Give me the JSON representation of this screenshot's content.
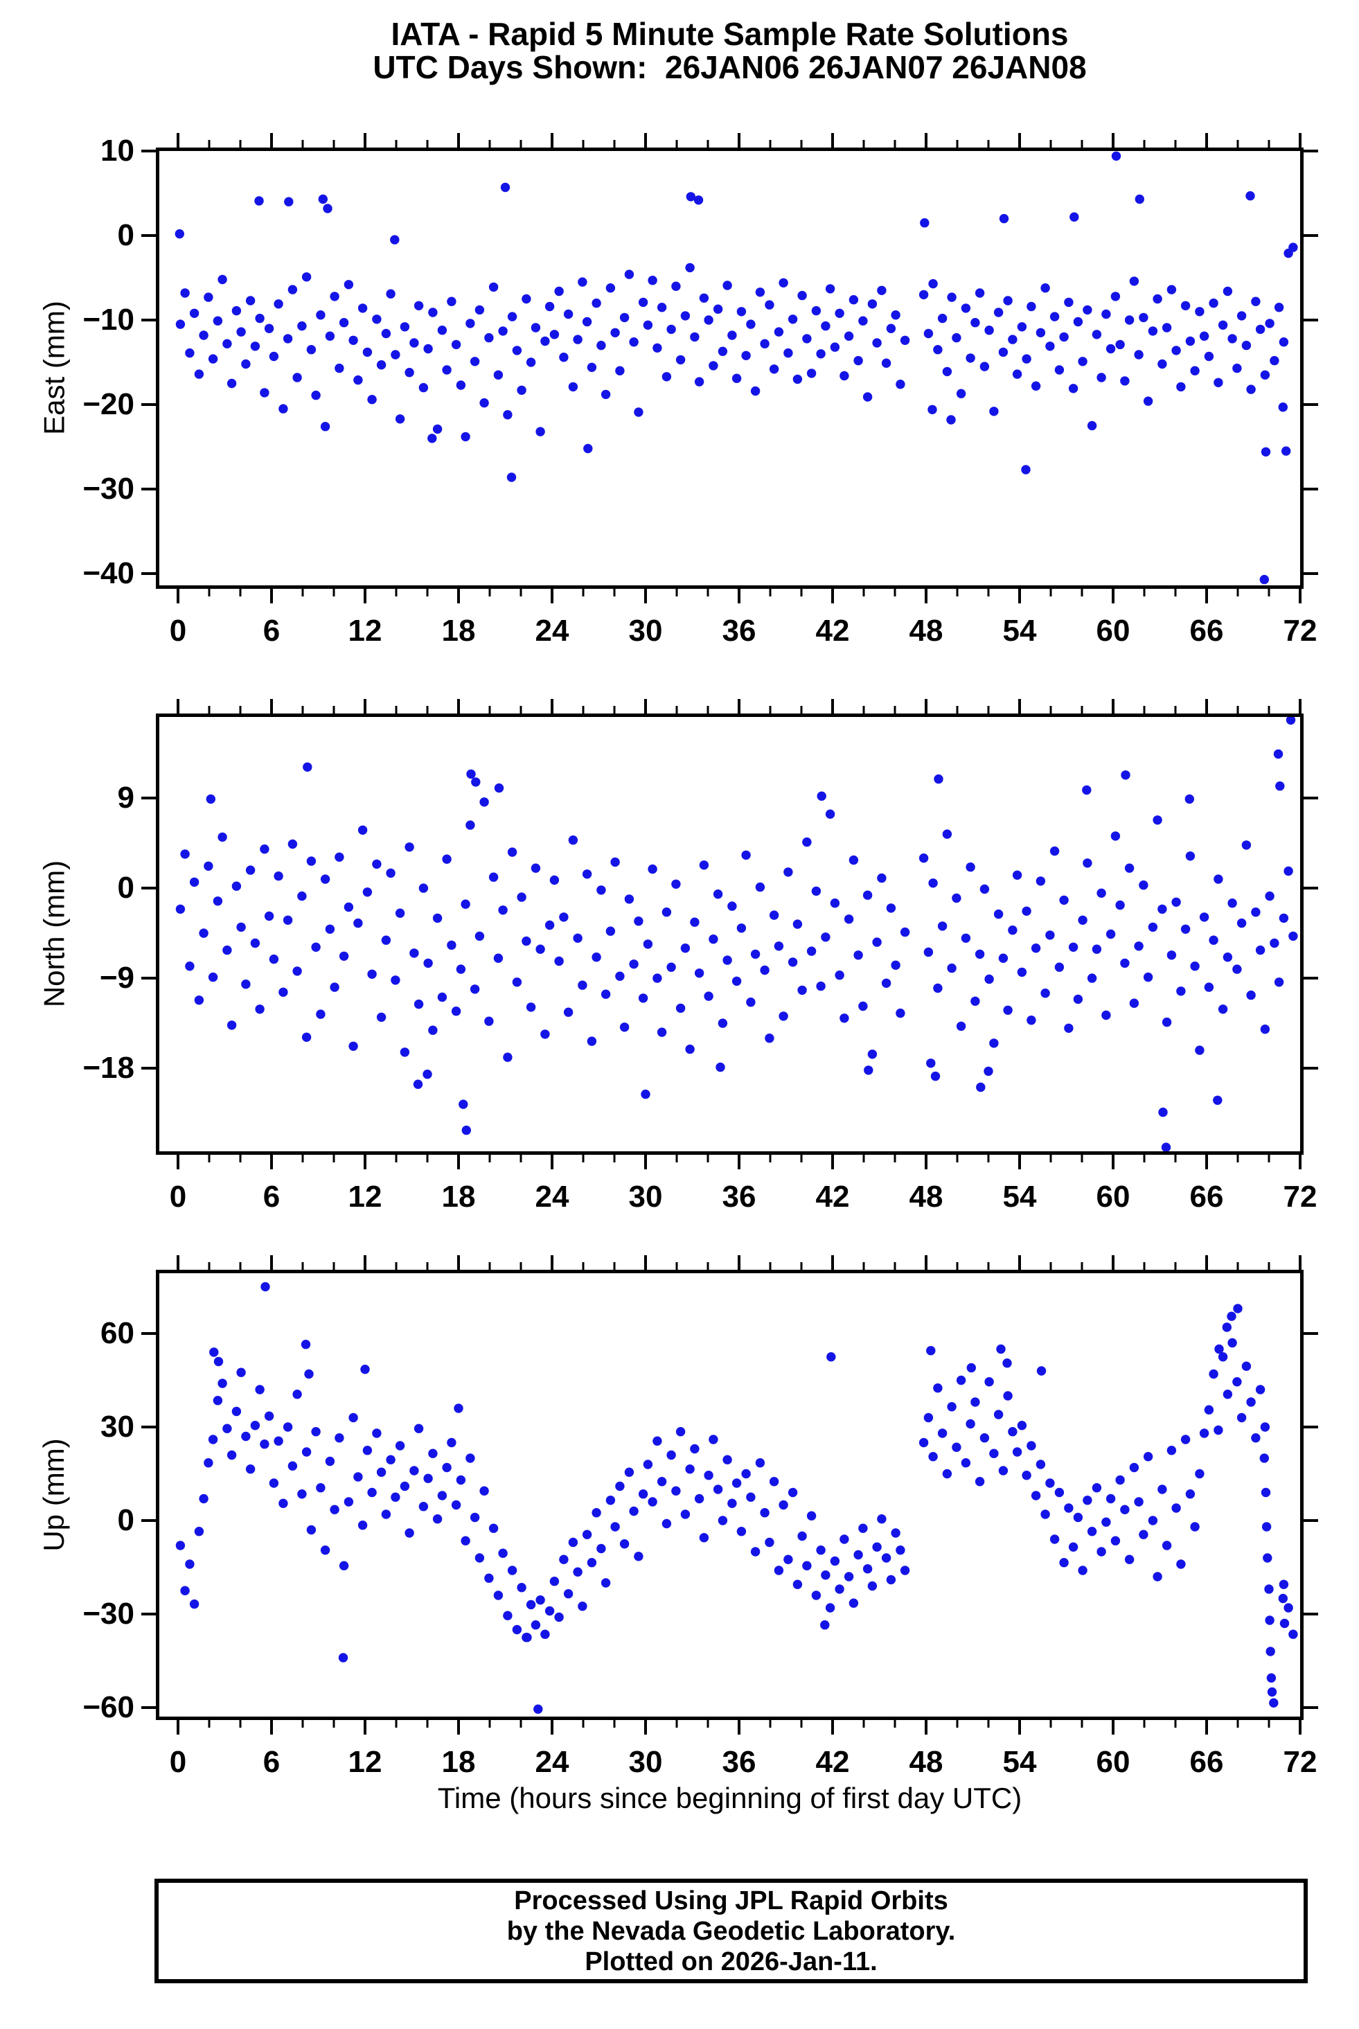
{
  "title_line1": "IATA - Rapid 5 Minute Sample Rate Solutions",
  "title_line2": "UTC Days Shown:  26JAN06 26JAN07 26JAN08",
  "xaxis_title": "Time (hours since beginning of first day UTC)",
  "footer": {
    "line1": "Processed Using JPL Rapid Orbits",
    "line2": "by the Nevada Geodetic Laboratory.",
    "line3": "Plotted on 2026-Jan-11."
  },
  "style": {
    "point_color": "#1414e6",
    "axis_color": "#000000",
    "background": "#ffffff"
  },
  "chart_data": {
    "type": "scatter",
    "title": "IATA - Rapid 5 Minute Sample Rate Solutions",
    "subtitle": "UTC Days Shown:  26JAN06 26JAN07 26JAN08",
    "xlabel": "Time (hours since beginning of first day UTC)",
    "x_axis": {
      "min": 0,
      "max": 72,
      "major_tick_step": 6,
      "minor_tick_step": 2,
      "major_tick_labels": [
        0,
        6,
        12,
        18,
        24,
        30,
        36,
        42,
        48,
        54,
        60,
        66,
        72
      ]
    },
    "legend": "none",
    "grid": false,
    "panels": [
      {
        "id": "east",
        "ylabel": "East (mm)",
        "yticks": [
          10,
          0,
          -10,
          -20,
          -30,
          -40
        ],
        "ylim_top": 10.41,
        "ylim_bottom": -41.8,
        "x_start": 0.15,
        "x_step": 0.3,
        "y_stream": [
          -10.5,
          -6.8,
          -13.9,
          -9.2,
          -16.4,
          -11.8,
          -7.3,
          -14.6,
          -10.1,
          -5.2,
          -12.8,
          -17.5,
          -8.9,
          -11.4,
          -15.2,
          -7.7,
          -13.1,
          -9.8,
          -18.6,
          -11.0,
          -14.3,
          -8.1,
          -20.5,
          -12.2,
          -6.4,
          -16.8,
          -10.7,
          -4.9,
          -13.5,
          -18.9,
          -9.4,
          -22.6,
          -11.9,
          -7.2,
          -15.7,
          -10.3,
          -5.8,
          -12.4,
          -17.1,
          -8.6,
          -13.8,
          -19.4,
          -9.9,
          -15.3,
          -11.6,
          -6.9,
          -14.1,
          -21.7,
          -10.8,
          -16.2,
          -12.7,
          -8.3,
          -18.0,
          -13.4,
          -9.1,
          -22.9,
          -11.2,
          -15.9,
          -7.8,
          -12.9,
          -17.7,
          -23.8,
          -10.4,
          -14.9,
          -8.8,
          -19.8,
          -12.1,
          -6.1,
          -16.5,
          -11.3,
          -21.2,
          -9.6,
          -13.6,
          -18.3,
          -7.5,
          -15.0,
          -10.9,
          -23.2,
          -12.5,
          -8.4,
          -11.7,
          -6.6,
          -14.4,
          -9.3,
          -17.9,
          -12.3,
          -5.5,
          -10.2,
          -15.6,
          -8.0,
          -13.0,
          -18.8,
          -6.2,
          -11.5,
          -16.0,
          -9.7,
          -4.6,
          -12.6,
          -20.9,
          -7.9,
          -10.6,
          -5.3,
          -13.3,
          -8.5,
          -16.7,
          -11.1,
          -6.0,
          -14.7,
          -9.5,
          -3.8,
          -12.0,
          -17.3,
          -7.4,
          -10.0,
          -15.4,
          -8.7,
          -13.7,
          -5.9,
          -11.8,
          -16.9,
          -9.0,
          -14.2,
          -10.5,
          -18.4,
          -6.7,
          -12.8,
          -8.2,
          -15.8,
          -11.4,
          -5.6,
          -13.9,
          -9.9,
          -17.0,
          -7.1,
          -12.2,
          -16.3,
          -8.9,
          -14.0,
          -10.7,
          -6.3,
          -13.2,
          -9.2,
          -16.6,
          -11.9,
          -7.6,
          -14.8,
          -10.1,
          -19.1,
          -8.1,
          -12.7,
          -6.5,
          -15.1,
          -11.0,
          -9.4,
          -17.6,
          -12.4,
          null,
          null,
          null,
          -7.0,
          -11.6,
          -5.7,
          -13.5,
          -9.8,
          -16.1,
          -7.3,
          -12.1,
          -18.7,
          -8.6,
          -14.5,
          -10.3,
          -6.8,
          -15.5,
          -11.2,
          -20.8,
          -9.1,
          -13.8,
          -7.7,
          -12.3,
          -16.4,
          -10.8,
          -14.6,
          -8.4,
          -17.8,
          -11.5,
          -6.2,
          -13.1,
          -9.6,
          -15.9,
          -12.0,
          -7.9,
          -18.1,
          -10.2,
          -14.9,
          -8.8,
          -22.5,
          -11.7,
          -16.8,
          -9.3,
          -13.4,
          -7.2,
          -12.9,
          -17.2,
          -10.0,
          -5.4,
          -14.1,
          -9.7,
          -19.6,
          -11.3,
          -7.5,
          -15.2,
          -10.9,
          -6.4,
          -13.6,
          -17.9,
          -8.3,
          -12.5,
          -16.0,
          -9.0,
          -11.9,
          -14.3,
          -8.0,
          -17.4,
          -10.6,
          -6.6,
          -12.2,
          -15.7,
          -9.5,
          -13.0,
          -18.2,
          -7.8,
          -11.1,
          -16.5,
          -10.4,
          -14.8,
          -8.5,
          -12.6,
          -2.1,
          -1.4
        ],
        "extra_points": [
          [
            0.1,
            0.2
          ],
          [
            5.2,
            4.1
          ],
          [
            7.1,
            4.0
          ],
          [
            9.3,
            4.3
          ],
          [
            9.6,
            3.2
          ],
          [
            13.9,
            -0.5
          ],
          [
            16.3,
            -24.0
          ],
          [
            21.0,
            5.7
          ],
          [
            21.4,
            -28.6
          ],
          [
            26.3,
            -25.2
          ],
          [
            32.9,
            4.6
          ],
          [
            33.4,
            4.2
          ],
          [
            47.9,
            1.5
          ],
          [
            48.4,
            -20.6
          ],
          [
            49.6,
            -21.8
          ],
          [
            53.0,
            2.0
          ],
          [
            54.4,
            -27.7
          ],
          [
            57.5,
            2.2
          ],
          [
            60.2,
            9.4
          ],
          [
            61.7,
            4.3
          ],
          [
            68.8,
            4.7
          ],
          [
            69.7,
            -40.7
          ],
          [
            69.8,
            -25.6
          ],
          [
            70.9,
            -20.3
          ],
          [
            71.1,
            -25.5
          ]
        ]
      },
      {
        "id": "north",
        "ylabel": "North (mm)",
        "yticks": [
          9,
          0,
          -9,
          -18
        ],
        "ylim_top": 17.45,
        "ylim_bottom": -26.65,
        "x_start": 0.15,
        "x_step": 0.3,
        "y_stream": [
          -2.1,
          3.4,
          -7.8,
          0.6,
          -11.2,
          -4.5,
          2.2,
          -8.9,
          -1.3,
          5.1,
          -6.2,
          -13.7,
          0.2,
          -3.9,
          -9.6,
          1.8,
          -5.5,
          -12.1,
          3.9,
          -2.8,
          -7.1,
          1.2,
          -10.4,
          -3.2,
          4.4,
          -8.3,
          -0.8,
          -14.9,
          2.7,
          -5.9,
          -12.6,
          0.9,
          -4.1,
          -9.9,
          3.1,
          -6.8,
          -1.9,
          -15.8,
          -3.5,
          5.8,
          -0.4,
          -8.6,
          2.4,
          -12.9,
          -5.2,
          1.5,
          -9.2,
          -2.5,
          -16.4,
          4.1,
          -6.5,
          -11.6,
          0.0,
          -7.5,
          -14.2,
          -3.0,
          -10.9,
          2.9,
          -5.7,
          -12.3,
          -8.1,
          -1.6,
          6.3,
          -10.1,
          -4.8,
          8.6,
          -13.3,
          1.1,
          -7.0,
          -2.2,
          -16.9,
          3.6,
          -9.4,
          -0.9,
          -5.3,
          -11.9,
          2.0,
          -6.1,
          -14.6,
          -3.7,
          0.8,
          -7.3,
          -2.9,
          -12.4,
          4.8,
          -5.0,
          -9.7,
          1.4,
          -15.3,
          -6.9,
          -0.2,
          -10.6,
          -4.3,
          2.6,
          -8.8,
          -13.9,
          -1.1,
          -7.6,
          -3.3,
          -11.0,
          -5.6,
          1.9,
          -9.0,
          -14.4,
          -2.4,
          -7.9,
          0.4,
          -12.0,
          -6.0,
          -16.1,
          -3.4,
          -8.5,
          2.3,
          -10.8,
          -5.1,
          -0.6,
          -13.5,
          -7.2,
          -1.8,
          -9.3,
          -4.0,
          3.3,
          -11.4,
          -6.6,
          0.1,
          -8.2,
          -15.0,
          -2.7,
          -5.8,
          -12.8,
          1.6,
          -7.4,
          -3.6,
          -10.2,
          4.6,
          -6.3,
          -0.3,
          -9.8,
          -4.9,
          7.4,
          -1.5,
          -8.7,
          -13.0,
          -3.1,
          2.8,
          -6.7,
          -11.8,
          -0.7,
          -16.6,
          -5.4,
          1.0,
          -9.5,
          -2.0,
          -7.7,
          -12.5,
          -4.4,
          null,
          null,
          null,
          3.0,
          -6.4,
          0.5,
          -10.0,
          -3.8,
          5.4,
          -8.0,
          -1.0,
          -13.8,
          -5.0,
          2.1,
          -11.3,
          -6.6,
          -0.1,
          -9.1,
          -15.5,
          -2.6,
          -7.0,
          -12.2,
          -4.2,
          1.3,
          -8.4,
          -2.3,
          -13.2,
          -6.0,
          0.7,
          -10.5,
          -4.7,
          3.7,
          -7.9,
          -1.2,
          -14.0,
          -5.9,
          -11.1,
          -3.2,
          2.5,
          -9.0,
          -6.1,
          -0.5,
          -12.7,
          -4.6,
          5.2,
          -1.7,
          -7.5,
          2.0,
          -11.5,
          -5.8,
          0.3,
          -8.9,
          -3.9,
          6.8,
          -2.1,
          -13.4,
          -6.7,
          -1.4,
          -10.3,
          -4.1,
          3.2,
          -7.8,
          -16.2,
          -2.9,
          -9.9,
          -5.2,
          0.9,
          -12.1,
          -6.9,
          -1.5,
          -8.1,
          -3.5,
          4.3,
          -10.7,
          -2.4,
          -6.2,
          -14.1,
          -0.8,
          -5.5,
          -9.4,
          -3.0,
          1.7,
          -4.8
        ],
        "extra_points": [
          [
            2.1,
            8.9
          ],
          [
            8.3,
            12.1
          ],
          [
            15.4,
            -19.6
          ],
          [
            16.0,
            -18.6
          ],
          [
            18.3,
            -21.6
          ],
          [
            18.5,
            -24.2
          ],
          [
            18.8,
            11.4
          ],
          [
            19.1,
            10.6
          ],
          [
            20.6,
            10.0
          ],
          [
            30.0,
            -20.6
          ],
          [
            34.8,
            -17.9
          ],
          [
            41.3,
            9.2
          ],
          [
            44.3,
            -18.2
          ],
          [
            48.3,
            -17.5
          ],
          [
            48.6,
            -18.8
          ],
          [
            48.8,
            10.9
          ],
          [
            51.5,
            -19.9
          ],
          [
            52.0,
            -18.3
          ],
          [
            58.3,
            9.8
          ],
          [
            60.8,
            11.3
          ],
          [
            63.2,
            -22.4
          ],
          [
            63.4,
            -25.9
          ],
          [
            64.9,
            8.9
          ],
          [
            66.7,
            -21.2
          ],
          [
            70.6,
            13.4
          ],
          [
            70.7,
            10.2
          ],
          [
            71.4,
            16.8
          ]
        ]
      },
      {
        "id": "up",
        "ylabel": "Up (mm)",
        "yticks": [
          60,
          30,
          0,
          -30,
          -60
        ],
        "ylim_top": 80.44,
        "ylim_bottom": -64.0,
        "x_start": 0.15,
        "x_step": 0.3,
        "y_stream": [
          -8.0,
          -22.5,
          -14.0,
          -26.8,
          -3.5,
          7.0,
          18.5,
          26.0,
          38.5,
          44.0,
          29.5,
          21.0,
          35.0,
          47.5,
          27.0,
          16.5,
          30.5,
          42.0,
          24.5,
          33.5,
          12.0,
          25.5,
          5.5,
          30.0,
          17.5,
          40.5,
          8.5,
          22.0,
          -3.0,
          28.5,
          10.5,
          -9.5,
          19.0,
          3.5,
          26.5,
          -14.5,
          6.0,
          33.0,
          14.0,
          -1.5,
          22.5,
          9.0,
          28.0,
          15.5,
          2.0,
          19.5,
          7.5,
          24.0,
          11.0,
          -4.0,
          16.0,
          29.5,
          4.5,
          13.5,
          21.5,
          0.5,
          8.0,
          17.0,
          25.0,
          5.0,
          13.0,
          -6.5,
          20.0,
          1.0,
          -12.0,
          9.5,
          -18.5,
          -2.5,
          -24.0,
          -10.5,
          -30.5,
          -16.0,
          -35.0,
          -21.5,
          -37.5,
          -27.0,
          -33.5,
          -25.5,
          -36.5,
          -29.0,
          -19.5,
          -31.0,
          -12.5,
          -23.5,
          -7.0,
          -16.5,
          -27.5,
          -4.5,
          -13.5,
          2.5,
          -9.0,
          -20.0,
          6.5,
          -2.0,
          11.0,
          -7.5,
          15.5,
          3.0,
          -11.5,
          8.5,
          18.0,
          6.0,
          25.5,
          12.5,
          -1.0,
          21.0,
          9.5,
          28.5,
          2.0,
          16.5,
          23.0,
          7.0,
          -5.5,
          14.5,
          26.0,
          10.0,
          0.0,
          19.5,
          5.5,
          12.0,
          -3.5,
          15.0,
          7.5,
          -10.0,
          18.5,
          2.5,
          -7.0,
          12.5,
          -16.0,
          5.0,
          -12.5,
          9.0,
          -20.5,
          -5.0,
          -14.5,
          1.5,
          -24.0,
          -9.5,
          -17.5,
          -28.0,
          -13.0,
          -22.0,
          -6.0,
          -18.0,
          -26.5,
          -11.0,
          -2.5,
          -15.5,
          -21.0,
          -8.5,
          0.5,
          -12.0,
          -19.0,
          -4.0,
          -9.5,
          -16.0,
          null,
          null,
          null,
          25.0,
          33.0,
          20.5,
          42.5,
          28.0,
          15.0,
          36.5,
          23.5,
          45.0,
          18.5,
          31.0,
          38.0,
          12.5,
          26.5,
          44.5,
          21.5,
          34.0,
          16.0,
          40.0,
          28.5,
          22.0,
          30.5,
          14.5,
          24.0,
          8.0,
          18.0,
          2.0,
          12.0,
          -6.0,
          9.0,
          -13.5,
          4.0,
          -8.5,
          1.0,
          -16.0,
          6.5,
          -3.5,
          10.5,
          -10.0,
          -0.5,
          7.0,
          -6.5,
          13.0,
          3.5,
          -12.5,
          17.0,
          6.0,
          -4.5,
          20.5,
          0.0,
          -18.0,
          10.0,
          -8.0,
          22.5,
          4.0,
          -14.0,
          26.0,
          8.5,
          -2.0,
          15.0,
          28.0,
          35.5,
          47.0,
          29.0,
          52.5,
          40.5,
          57.0,
          44.5,
          33.0,
          49.5,
          38.0,
          26.5,
          42.0,
          30.0,
          null,
          null,
          null,
          -20.5,
          -28.0,
          -36.5
        ],
        "extra_points": [
          [
            2.3,
            54.0
          ],
          [
            2.6,
            51.0
          ],
          [
            5.6,
            75.0
          ],
          [
            8.2,
            56.5
          ],
          [
            8.4,
            47.0
          ],
          [
            10.6,
            -44.0
          ],
          [
            12.0,
            48.5
          ],
          [
            18.0,
            36.0
          ],
          [
            22.4,
            -37.5
          ],
          [
            23.1,
            -60.5
          ],
          [
            41.5,
            -33.5
          ],
          [
            41.9,
            52.5
          ],
          [
            48.3,
            54.5
          ],
          [
            50.9,
            49.0
          ],
          [
            52.8,
            55.0
          ],
          [
            53.2,
            50.5
          ],
          [
            55.4,
            48.0
          ],
          [
            66.8,
            55.0
          ],
          [
            67.3,
            62.0
          ],
          [
            67.6,
            65.5
          ],
          [
            68.0,
            68.0
          ],
          [
            69.7,
            20.0
          ],
          [
            69.8,
            9.0
          ],
          [
            69.85,
            -2.0
          ],
          [
            69.9,
            -12.0
          ],
          [
            70.0,
            -22.0
          ],
          [
            70.05,
            -32.0
          ],
          [
            70.1,
            -42.0
          ],
          [
            70.15,
            -50.5
          ],
          [
            70.2,
            -55.0
          ],
          [
            70.3,
            -58.5
          ],
          [
            70.9,
            -25.0
          ],
          [
            71.0,
            -33.0
          ]
        ]
      }
    ]
  }
}
